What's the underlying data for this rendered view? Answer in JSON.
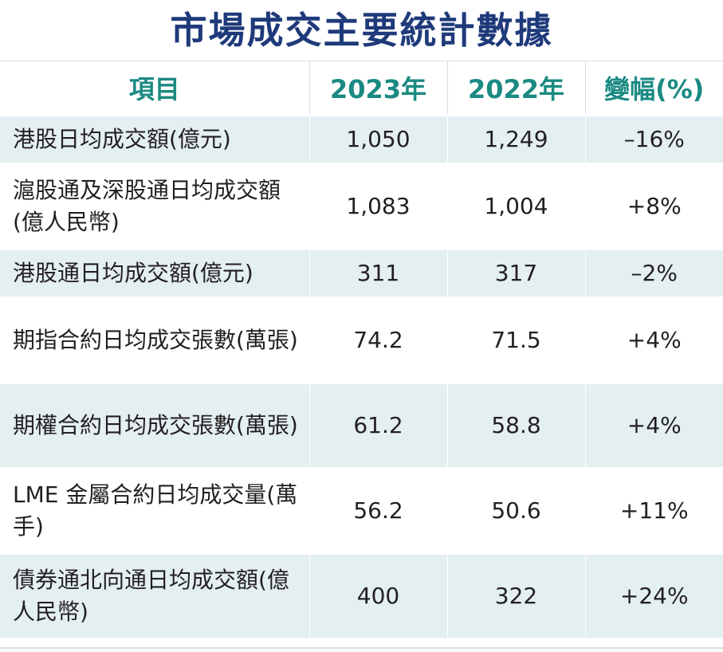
{
  "title": "市場成交主要統計數據",
  "headers": [
    "項目",
    "2023年",
    "2022年",
    "變幅(%)"
  ],
  "rows": [
    {
      "item": "港股日均成交額(億元)",
      "y2023": "1,050",
      "y2022": "1,249",
      "change": "–16%"
    },
    {
      "item": "滬股通及深股通日均成交額(億人民幣)",
      "y2023": "1,083",
      "y2022": "1,004",
      "change": "+8%"
    },
    {
      "item": "港股通日均成交額(億元)",
      "y2023": "311",
      "y2022": "317",
      "change": "–2%"
    },
    {
      "item": "期指合約日均成交張數(萬張)",
      "y2023": "74.2",
      "y2022": "71.5",
      "change": "+4%"
    },
    {
      "item": "期權合約日均成交張數(萬張)",
      "y2023": "61.2",
      "y2022": "58.8",
      "change": "+4%"
    },
    {
      "item": "LME 金屬合約日均成交量(萬手)",
      "y2023": "56.2",
      "y2022": "50.6",
      "change": "+11%"
    },
    {
      "item": "債券通北向通日均成交額(億人民幣)",
      "y2023": "400",
      "y2022": "322",
      "change": "+24%"
    }
  ]
}
